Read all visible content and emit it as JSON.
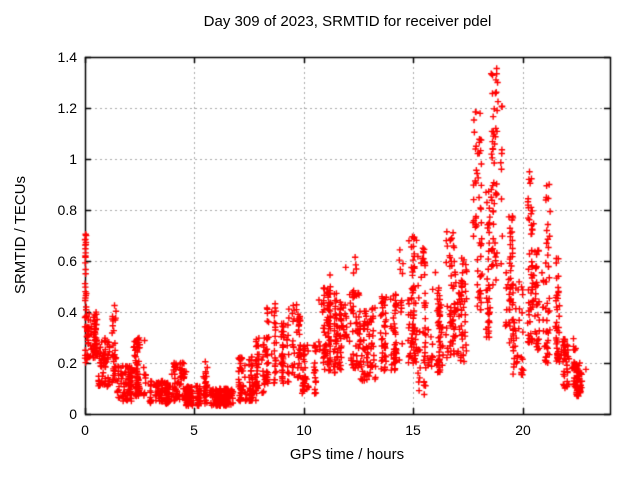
{
  "figure": {
    "title": "Day 309 of 2023, SRMTID for receiver pdel",
    "xlabel": "GPS time / hours",
    "ylabel": "SRMTID / TECUs"
  },
  "chart_data": {
    "type": "scatter",
    "title": "Day 309 of 2023, SRMTID for receiver pdel",
    "xlabel": "GPS time / hours",
    "ylabel": "SRMTID / TECUs",
    "series_name": "SRMTID for receiver pdel",
    "xlim": [
      0,
      24
    ],
    "ylim": [
      0,
      1.4
    ],
    "xticks": [
      0,
      5,
      10,
      15,
      20
    ],
    "xticklabels": [
      "0",
      "5",
      "10",
      "15",
      "20"
    ],
    "yticks": [
      0,
      0.2,
      0.4,
      0.6,
      0.8,
      1.0,
      1.2,
      1.4
    ],
    "yticklabels": [
      "0",
      "0.2",
      "0.4",
      "0.6",
      "0.8",
      "1",
      "1.2",
      "1.4"
    ],
    "grid": "dashed",
    "legend": "none",
    "marker": "plus",
    "marker_color": "#ff0000",
    "grid_color": "#aaaaaa",
    "axis_color": "#000000",
    "background_color": "#ffffff",
    "seed": 20230309,
    "cluster_time_jitter": 0.1,
    "density_envelope_format": [
      "t_start_h",
      "t_end_h",
      "value_low",
      "value_high",
      "n_points",
      "low_bias_exponent"
    ],
    "density_envelope": [
      [
        0.0,
        0.1,
        0.2,
        0.71,
        28,
        1.0
      ],
      [
        0.1,
        0.62,
        0.22,
        0.4,
        80,
        1.2
      ],
      [
        0.62,
        1.12,
        0.1,
        0.3,
        60,
        1.2
      ],
      [
        1.12,
        1.42,
        0.12,
        0.45,
        35,
        1.3
      ],
      [
        1.42,
        2.12,
        0.05,
        0.19,
        80,
        1.2
      ],
      [
        2.12,
        2.82,
        0.07,
        0.3,
        80,
        1.4
      ],
      [
        2.82,
        3.92,
        0.04,
        0.13,
        110,
        1.1
      ],
      [
        3.92,
        4.62,
        0.05,
        0.21,
        70,
        1.4
      ],
      [
        4.62,
        5.32,
        0.03,
        0.11,
        80,
        1.1
      ],
      [
        5.32,
        5.67,
        0.04,
        0.21,
        30,
        1.3
      ],
      [
        5.67,
        6.92,
        0.03,
        0.1,
        130,
        1.0
      ],
      [
        6.92,
        7.82,
        0.05,
        0.23,
        90,
        1.3
      ],
      [
        7.82,
        8.32,
        0.08,
        0.3,
        50,
        1.3
      ],
      [
        8.32,
        8.77,
        0.12,
        0.45,
        45,
        1.3
      ],
      [
        8.77,
        9.32,
        0.12,
        0.36,
        50,
        1.2
      ],
      [
        9.32,
        9.87,
        0.14,
        0.43,
        50,
        1.2
      ],
      [
        9.87,
        10.57,
        0.08,
        0.27,
        60,
        1.2
      ],
      [
        10.57,
        11.37,
        0.17,
        0.5,
        80,
        1.3
      ],
      [
        11.37,
        12.17,
        0.16,
        0.48,
        80,
        1.2
      ],
      [
        12.17,
        12.57,
        0.18,
        0.62,
        40,
        1.4
      ],
      [
        12.57,
        13.47,
        0.13,
        0.42,
        80,
        1.2
      ],
      [
        13.47,
        14.37,
        0.17,
        0.47,
        80,
        1.2
      ],
      [
        14.37,
        15.22,
        0.2,
        0.7,
        80,
        1.6
      ],
      [
        15.22,
        15.67,
        0.07,
        0.66,
        45,
        1.5
      ],
      [
        15.67,
        16.47,
        0.16,
        0.5,
        70,
        1.3
      ],
      [
        16.47,
        17.12,
        0.22,
        0.72,
        70,
        1.2
      ],
      [
        17.12,
        17.57,
        0.2,
        0.62,
        45,
        1.1
      ],
      [
        17.57,
        18.12,
        0.4,
        1.2,
        50,
        1.1
      ],
      [
        18.12,
        18.57,
        0.3,
        0.88,
        40,
        1.2
      ],
      [
        18.57,
        19.12,
        0.5,
        1.36,
        60,
        1.1
      ],
      [
        19.12,
        19.57,
        0.22,
        0.78,
        45,
        1.3
      ],
      [
        19.57,
        20.07,
        0.15,
        0.52,
        45,
        1.2
      ],
      [
        20.07,
        20.57,
        0.28,
        0.96,
        55,
        1.4
      ],
      [
        20.57,
        21.02,
        0.25,
        0.65,
        40,
        1.2
      ],
      [
        21.02,
        21.42,
        0.2,
        0.9,
        40,
        1.8
      ],
      [
        21.42,
        21.77,
        0.2,
        0.62,
        40,
        1.3
      ],
      [
        21.77,
        22.47,
        0.1,
        0.3,
        70,
        1.2
      ],
      [
        22.47,
        22.97,
        0.07,
        0.2,
        55,
        1.1
      ]
    ],
    "outliers": [
      [
        0.03,
        0.705
      ],
      [
        0.02,
        0.685
      ],
      [
        0.04,
        0.665
      ],
      [
        0.02,
        0.648
      ],
      [
        0.03,
        0.632
      ],
      [
        0.02,
        0.62
      ],
      [
        0.03,
        0.55
      ],
      [
        0.02,
        0.48
      ],
      [
        0.04,
        0.465
      ],
      [
        0.02,
        0.455
      ],
      [
        18.82,
        1.355
      ],
      [
        18.86,
        1.3
      ],
      [
        18.8,
        1.262
      ],
      [
        18.88,
        1.225
      ],
      [
        18.84,
        1.19
      ],
      [
        18.78,
        1.12
      ],
      [
        17.85,
        1.185
      ],
      [
        17.8,
        1.105
      ],
      [
        17.88,
        1.05
      ],
      [
        20.32,
        0.95
      ],
      [
        20.35,
        0.905
      ],
      [
        21.22,
        0.9
      ],
      [
        21.18,
        0.845
      ],
      [
        14.97,
        0.695
      ],
      [
        14.93,
        0.655
      ],
      [
        12.35,
        0.615
      ],
      [
        12.38,
        0.585
      ],
      [
        15.45,
        0.65
      ],
      [
        15.42,
        0.61
      ],
      [
        11.92,
        0.575
      ],
      [
        16.02,
        0.555
      ],
      [
        11.2,
        0.545
      ],
      [
        5.5,
        0.205
      ],
      [
        22.9,
        0.175
      ]
    ]
  }
}
